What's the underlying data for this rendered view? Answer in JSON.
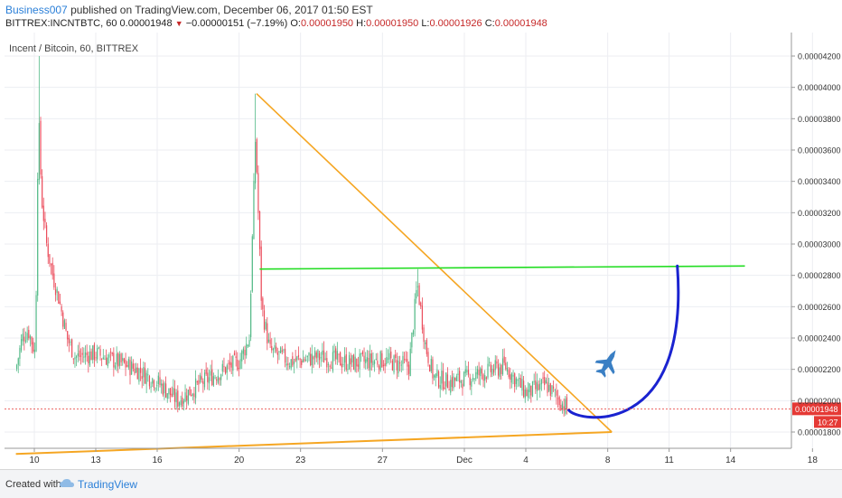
{
  "header": {
    "author": "Business007",
    "published": "published on TradingView.com, December 06, 2017 01:50 EST",
    "symbol": "BITTREX:INCNTBTC, 60",
    "last": "0.00001948",
    "change": "−0.00000151 (−7.19%)",
    "o_label": "O:",
    "o_value": "0.00001950",
    "h_label": "H:",
    "h_value": "0.00001950",
    "l_label": "L:",
    "l_value": "0.00001926",
    "c_label": "C:",
    "c_value": "0.00001948"
  },
  "footer": {
    "created_with": "Created with",
    "brand": "TradingView"
  },
  "colors": {
    "up": "#53b987",
    "down": "#eb4d5c",
    "trendline": "#f5a623",
    "resistance": "#22dd22",
    "projection": "#1a23d0",
    "price_tag": "#e53935",
    "plane": "#3a7fc4"
  },
  "icons": {
    "plane": "fighter-jet-icon",
    "brand": "tradingview-cloud-icon"
  },
  "chart_data": {
    "type": "candlestick",
    "title": "Incent / Bitcoin, 60, BITTREX",
    "timeframe": "60",
    "x_ticks": [
      "10",
      "13",
      "16",
      "20",
      "23",
      "27",
      "Dec",
      "4",
      "8",
      "11",
      "14",
      "18"
    ],
    "y_ticks": [
      "0.00001800",
      "0.00002000",
      "0.00002200",
      "0.00002400",
      "0.00002600",
      "0.00002800",
      "0.00003000",
      "0.00003200",
      "0.00003400",
      "0.00003600",
      "0.00003800",
      "0.00004000",
      "0.00004200"
    ],
    "ylim": [
      1.66e-05,
      4.3e-05
    ],
    "xlim": [
      9.1,
      18.6
    ],
    "x_unit": "day (Nov 10 = 10 … Dec 18 = 18)",
    "current_price": "0.00001948",
    "countdown": "10:27",
    "approx_close_path": [
      {
        "x": 9.1,
        "y": 2.2e-05
      },
      {
        "x": 9.4,
        "y": 2.4e-05
      },
      {
        "x": 9.7,
        "y": 2.45e-05
      },
      {
        "x": 10.05,
        "y": 2.3e-05
      },
      {
        "x": 10.2,
        "y": 3.85e-05
      },
      {
        "x": 10.35,
        "y": 3.3e-05
      },
      {
        "x": 10.6,
        "y": 3e-05
      },
      {
        "x": 10.9,
        "y": 2.8e-05
      },
      {
        "x": 11.2,
        "y": 2.65e-05
      },
      {
        "x": 11.6,
        "y": 2.4e-05
      },
      {
        "x": 12.0,
        "y": 2.28e-05
      },
      {
        "x": 13.0,
        "y": 2.3e-05
      },
      {
        "x": 14.0,
        "y": 2.25e-05
      },
      {
        "x": 15.0,
        "y": 2.2e-05
      },
      {
        "x": 16.0,
        "y": 2.12e-05
      },
      {
        "x": 17.0,
        "y": 2e-05
      },
      {
        "x": 18.0,
        "y": 2.1e-05
      },
      {
        "x": 19.0,
        "y": 2.18e-05
      },
      {
        "x": 20.0,
        "y": 2.25e-05
      },
      {
        "x": 20.5,
        "y": 2.4e-05
      },
      {
        "x": 20.8,
        "y": 3.7e-05
      },
      {
        "x": 21.1,
        "y": 2.6e-05
      },
      {
        "x": 21.5,
        "y": 2.32e-05
      },
      {
        "x": 22.5,
        "y": 2.25e-05
      },
      {
        "x": 24.0,
        "y": 2.28e-05
      },
      {
        "x": 25.5,
        "y": 2.24e-05
      },
      {
        "x": 27.0,
        "y": 2.26e-05
      },
      {
        "x": 28.3,
        "y": 2.22e-05
      },
      {
        "x": 28.7,
        "y": 2.75e-05
      },
      {
        "x": 29.1,
        "y": 2.35e-05
      },
      {
        "x": 29.5,
        "y": 2.15e-05
      },
      {
        "x": 30.2,
        "y": 2.12e-05
      },
      {
        "x": 31.0,
        "y": 2.14e-05
      },
      {
        "x": 32.0,
        "y": 2.18e-05
      },
      {
        "x": 33.0,
        "y": 2.22e-05
      },
      {
        "x": 34.0,
        "y": 2.05e-05
      },
      {
        "x": 35.0,
        "y": 2.1e-05
      },
      {
        "x": 36.0,
        "y": 1.95e-05
      }
    ],
    "drawings": {
      "descending_trendline": [
        {
          "x": 20.85,
          "y": 3.96e-05
        },
        {
          "x": 38.2,
          "y": 1.8e-05
        }
      ],
      "support_line": [
        {
          "x": 9.1,
          "y": 1.66e-05
        },
        {
          "x": 38.2,
          "y": 1.8e-05
        }
      ],
      "resistance_line": [
        {
          "x": 21.0,
          "y": 2.84e-05
        },
        {
          "x": 44.7,
          "y": 2.86e-05
        }
      ],
      "projection_curve": [
        {
          "x": 36.1,
          "y": 1.94e-05
        },
        {
          "x": 41.4,
          "y": 2.86e-05
        }
      ]
    }
  }
}
